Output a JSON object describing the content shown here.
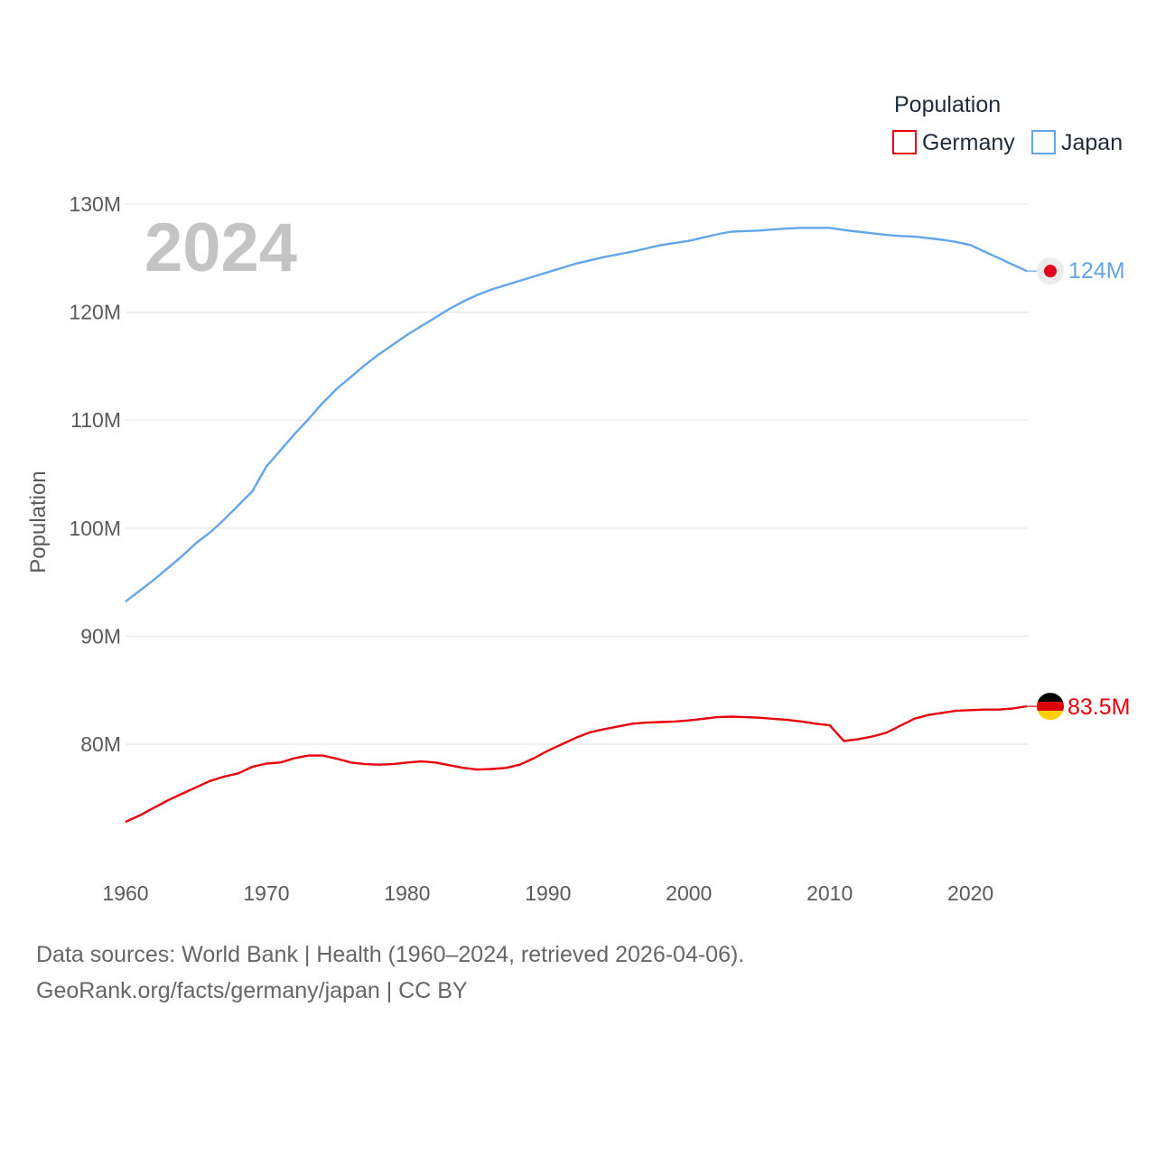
{
  "chart_data": {
    "type": "line",
    "year_label": "2024",
    "legend_title": "Population",
    "ylabel": "Population",
    "xlabel": "",
    "ylim": [
      68000000,
      132000000
    ],
    "xlim": [
      1960,
      2024
    ],
    "y_ticks": [
      {
        "value": 80000000,
        "label": "80M"
      },
      {
        "value": 90000000,
        "label": "90M"
      },
      {
        "value": 100000000,
        "label": "100M"
      },
      {
        "value": 110000000,
        "label": "110M"
      },
      {
        "value": 120000000,
        "label": "120M"
      },
      {
        "value": 130000000,
        "label": "130M"
      }
    ],
    "x_ticks": [
      {
        "value": 1960,
        "label": "1960"
      },
      {
        "value": 1970,
        "label": "1970"
      },
      {
        "value": 1980,
        "label": "1980"
      },
      {
        "value": 1990,
        "label": "1990"
      },
      {
        "value": 2000,
        "label": "2000"
      },
      {
        "value": 2010,
        "label": "2010"
      },
      {
        "value": 2020,
        "label": "2020"
      }
    ],
    "x": [
      1960,
      1961,
      1962,
      1963,
      1964,
      1965,
      1966,
      1967,
      1968,
      1969,
      1970,
      1971,
      1972,
      1973,
      1974,
      1975,
      1976,
      1977,
      1978,
      1979,
      1980,
      1981,
      1982,
      1983,
      1984,
      1985,
      1986,
      1987,
      1988,
      1989,
      1990,
      1991,
      1992,
      1993,
      1994,
      1995,
      1996,
      1997,
      1998,
      1999,
      2000,
      2001,
      2002,
      2003,
      2004,
      2005,
      2006,
      2007,
      2008,
      2009,
      2010,
      2011,
      2012,
      2013,
      2014,
      2015,
      2016,
      2017,
      2018,
      2019,
      2020,
      2021,
      2022,
      2023,
      2024
    ],
    "series": [
      {
        "name": "Germany",
        "color": "#e8000d",
        "end_label": "83.5M",
        "flag": "germany-flag",
        "values": [
          72800000,
          73400000,
          74100000,
          74800000,
          75400000,
          76000000,
          76600000,
          77000000,
          77300000,
          77900000,
          78200000,
          78300000,
          78700000,
          78950000,
          78950000,
          78650000,
          78300000,
          78150000,
          78100000,
          78150000,
          78300000,
          78400000,
          78300000,
          78050000,
          77800000,
          77650000,
          77700000,
          77800000,
          78100000,
          78700000,
          79400000,
          80000000,
          80600000,
          81100000,
          81400000,
          81650000,
          81900000,
          82000000,
          82050000,
          82100000,
          82200000,
          82350000,
          82500000,
          82550000,
          82500000,
          82450000,
          82350000,
          82250000,
          82100000,
          81900000,
          81750000,
          80300000,
          80450000,
          80700000,
          81050000,
          81700000,
          82350000,
          82700000,
          82900000,
          83100000,
          83150000,
          83200000,
          83200000,
          83300000,
          83500000
        ]
      },
      {
        "name": "Japan",
        "color": "#62a6e8",
        "end_label": "124M",
        "flag": "japan-flag",
        "values": [
          93200000,
          94200000,
          95200000,
          96300000,
          97400000,
          98600000,
          99600000,
          100800000,
          102100000,
          103400000,
          105700000,
          107200000,
          108700000,
          110100000,
          111600000,
          112900000,
          114000000,
          115100000,
          116100000,
          117000000,
          117900000,
          118700000,
          119500000,
          120300000,
          121000000,
          121600000,
          122100000,
          122500000,
          122900000,
          123300000,
          123700000,
          124100000,
          124500000,
          124800000,
          125100000,
          125350000,
          125600000,
          125900000,
          126200000,
          126400000,
          126600000,
          126900000,
          127200000,
          127450000,
          127500000,
          127550000,
          127650000,
          127750000,
          127800000,
          127800000,
          127800000,
          127600000,
          127450000,
          127300000,
          127150000,
          127050000,
          127000000,
          126850000,
          126700000,
          126500000,
          126200000,
          125600000,
          125000000,
          124400000,
          123800000
        ]
      }
    ],
    "footer_line1": "Data sources: World Bank | Health (1960–2024, retrieved 2026-04-06).",
    "footer_line2": "GeoRank.org/facts/germany/japan | CC BY"
  }
}
